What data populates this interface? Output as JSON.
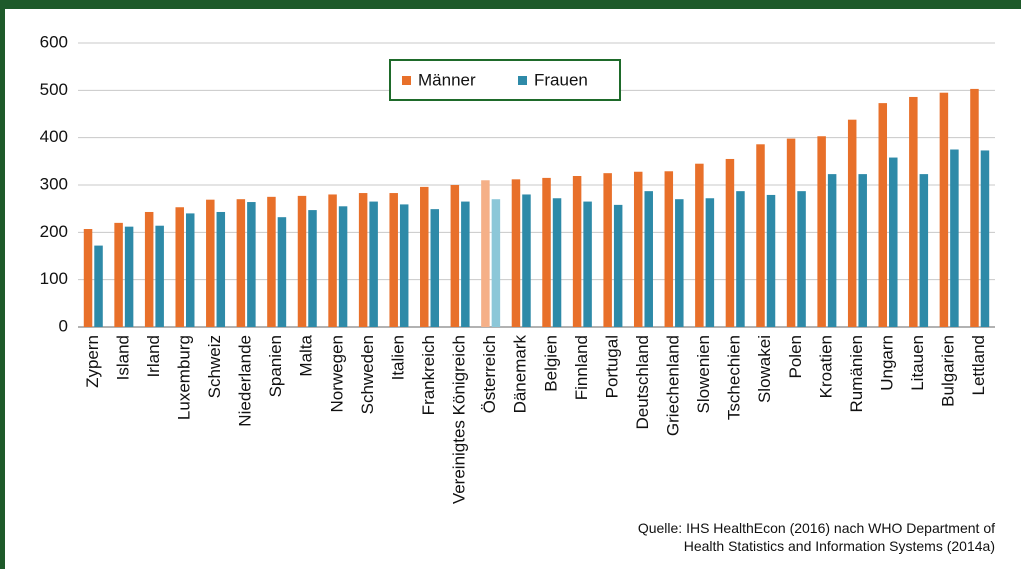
{
  "chart_data": {
    "type": "bar",
    "categories": [
      "Zypern",
      "Island",
      "Irland",
      "Luxemburg",
      "Schweiz",
      "Niederlande",
      "Spanien",
      "Malta",
      "Norwegen",
      "Schweden",
      "Italien",
      "Frankreich",
      "Vereinigtes Königreich",
      "Österreich",
      "Dänemark",
      "Belgien",
      "Finnland",
      "Portugal",
      "Deutschland",
      "Griechenland",
      "Slowenien",
      "Tschechien",
      "Slowakei",
      "Polen",
      "Kroatien",
      "Rumänien",
      "Ungarn",
      "Litauen",
      "Bulgarien",
      "Lettland"
    ],
    "series": [
      {
        "name": "Männer",
        "color": "#e8702a",
        "values": [
          207,
          220,
          243,
          253,
          269,
          270,
          275,
          277,
          280,
          283,
          283,
          296,
          300,
          310,
          312,
          315,
          319,
          325,
          328,
          329,
          345,
          355,
          386,
          398,
          403,
          438,
          473,
          486,
          495,
          503
        ]
      },
      {
        "name": "Frauen",
        "color": "#2e8aa8",
        "values": [
          172,
          212,
          214,
          240,
          243,
          264,
          232,
          247,
          255,
          265,
          259,
          249,
          265,
          270,
          280,
          272,
          265,
          258,
          287,
          270,
          272,
          287,
          279,
          287,
          323,
          323,
          358,
          323,
          375,
          373
        ]
      }
    ],
    "highlight": 13,
    "highlight_colors": [
      "#f5b088",
      "#8cc7d8"
    ],
    "ylim": [
      0,
      600
    ],
    "yticks": [
      0,
      100,
      200,
      300,
      400,
      500,
      600
    ],
    "grid": true,
    "source": [
      "Quelle: IHS HealthEcon (2016) nach WHO Department of",
      "Health Statistics and Information Systems (2014a)"
    ]
  }
}
